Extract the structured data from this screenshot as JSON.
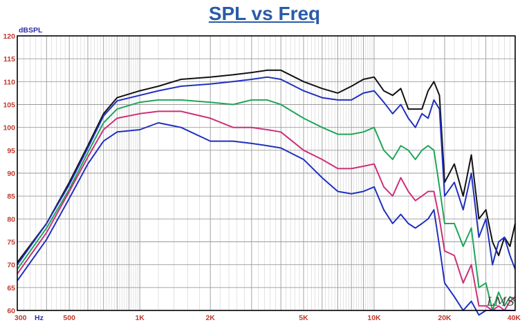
{
  "chart_data": {
    "type": "line",
    "title": "SPL vs Freq",
    "ylabel": "dBSPL",
    "xunit": "Hz",
    "watermark": "LMS",
    "xscale": "log",
    "xlim": [
      300,
      40000
    ],
    "ylim": [
      60,
      120
    ],
    "grid": true,
    "yticks": [
      60,
      65,
      70,
      75,
      80,
      85,
      90,
      95,
      100,
      105,
      110,
      115,
      120
    ],
    "xticks": [
      {
        "value": 300,
        "label": "300"
      },
      {
        "value": 500,
        "label": "500"
      },
      {
        "value": 1000,
        "label": "1K"
      },
      {
        "value": 2000,
        "label": "2K"
      },
      {
        "value": 5000,
        "label": "5K"
      },
      {
        "value": 10000,
        "label": "10K"
      },
      {
        "value": 20000,
        "label": "20K"
      },
      {
        "value": 40000,
        "label": "40K"
      }
    ],
    "x": [
      300,
      400,
      500,
      600,
      700,
      800,
      1000,
      1200,
      1500,
      2000,
      2500,
      3000,
      3500,
      4000,
      5000,
      6000,
      7000,
      8000,
      9000,
      10000,
      11000,
      12000,
      13000,
      14000,
      15000,
      16000,
      17000,
      18000,
      19000,
      20000,
      22000,
      24000,
      26000,
      28000,
      30000,
      32000,
      34000,
      36000,
      38000,
      40000
    ],
    "series": [
      {
        "color": "#111111",
        "values": [
          70.5,
          79,
          88,
          96,
          103,
          106.5,
          108,
          109,
          110.5,
          111,
          111.5,
          112,
          112.5,
          112.5,
          110,
          108.5,
          107.5,
          109,
          110.5,
          111,
          108,
          107,
          108.5,
          104,
          104,
          104,
          108,
          110,
          107,
          88,
          92,
          85,
          94,
          80,
          82,
          75,
          72,
          76,
          74,
          79
        ]
      },
      {
        "color": "#1f2fbf",
        "values": [
          70,
          79,
          87.5,
          95.5,
          102.5,
          105.8,
          107,
          108,
          109,
          109.5,
          110,
          110.5,
          111,
          110.5,
          108,
          106.5,
          106,
          106,
          107.5,
          108,
          105.5,
          103,
          105,
          102,
          100,
          103,
          102,
          106,
          104,
          85,
          88,
          82,
          90,
          76,
          80,
          70,
          75,
          76,
          72,
          69
        ]
      },
      {
        "color": "#1fa55a",
        "values": [
          69,
          78,
          86.5,
          94.5,
          101,
          104,
          105.5,
          106,
          106,
          105.5,
          105,
          106,
          106,
          105,
          102,
          100,
          98.5,
          98.5,
          99,
          100,
          95,
          93,
          96,
          95,
          93,
          95,
          96,
          95,
          87,
          79,
          79,
          74,
          78,
          65,
          66,
          60,
          64,
          61,
          63,
          62
        ]
      },
      {
        "color": "#cc2f7a",
        "values": [
          68,
          77,
          86,
          93.5,
          99.5,
          102,
          103,
          103.5,
          103.5,
          102,
          100,
          100,
          99.5,
          99,
          95,
          93,
          91,
          91,
          91.5,
          92,
          87,
          85,
          89,
          86,
          84,
          85,
          86,
          86,
          80,
          73,
          72,
          66,
          70,
          61,
          61,
          60,
          61,
          60,
          62,
          63
        ]
      },
      {
        "color": "#1f2fbf",
        "values": [
          66.5,
          75.5,
          84.5,
          92,
          97,
          99,
          99.5,
          101,
          100,
          97,
          97,
          96.5,
          96,
          95.5,
          93,
          89,
          86,
          85.5,
          86,
          87,
          82,
          79,
          81,
          79,
          78,
          79,
          80,
          82,
          74,
          66,
          63,
          60,
          62,
          59,
          60,
          60,
          60,
          60,
          60,
          60
        ]
      }
    ]
  }
}
